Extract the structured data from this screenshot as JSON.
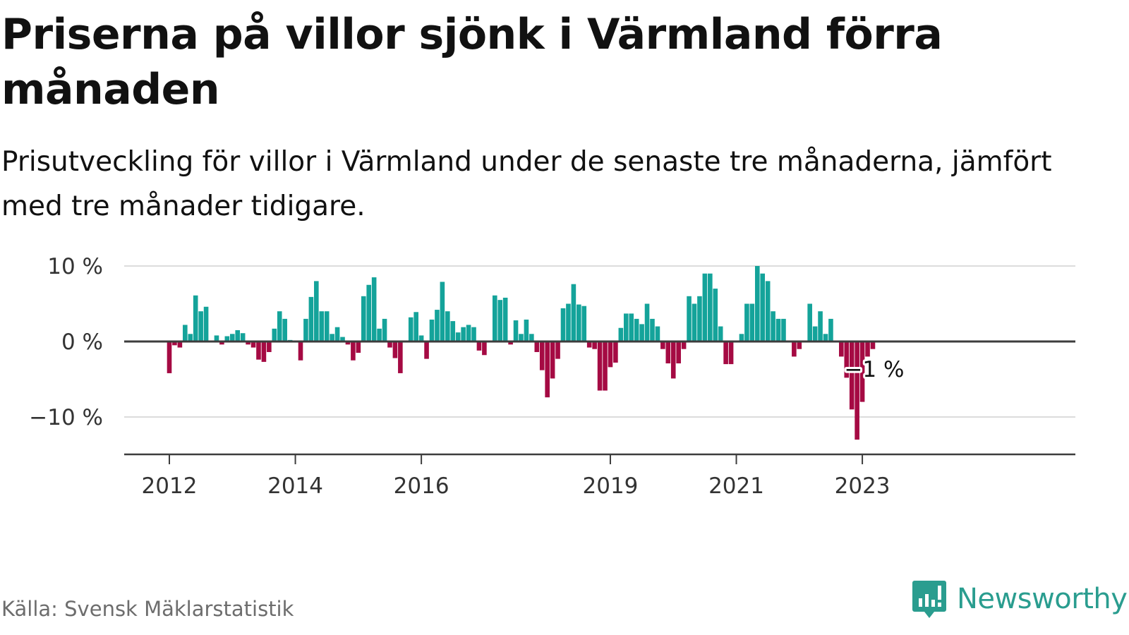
{
  "header": {
    "title": "Priserna på villor sjönk i Värmland förra månaden",
    "subtitle": "Prisutveckling för villor i Värmland under de senaste tre månaderna, jämfört med tre månader tidigare."
  },
  "footer": {
    "source": "Källa: Svensk Mäklarstatistik",
    "brand": "Newsworthy",
    "brand_icon": "bar-chart-speech-bubble-icon"
  },
  "colors": {
    "positive": "#14a39a",
    "negative": "#a50a43",
    "axis": "#3d3d3d",
    "grid": "#dcdcdc",
    "text": "#111111",
    "muted": "#6d6d6d"
  },
  "chart_data": {
    "type": "bar",
    "title": "Priserna på villor sjönk i Värmland förra månaden",
    "subtitle": "Prisutveckling för villor i Värmland under de senaste tre månaderna, jämfört med tre månader tidigare.",
    "unit": "%",
    "ylim": [
      -15,
      10
    ],
    "y_ticks": [
      {
        "value": 10,
        "label": "10 %"
      },
      {
        "value": 0,
        "label": "0 %"
      },
      {
        "value": -10,
        "label": "−10 %"
      }
    ],
    "x_ticks": [
      "2012",
      "2014",
      "2016",
      "2019",
      "2021",
      "2023"
    ],
    "grid": true,
    "annotation": {
      "text": "−1 %",
      "date": "2023-03"
    },
    "series": [
      {
        "points": [
          [
            "2012-01",
            -4.2
          ],
          [
            "2012-02",
            -0.5
          ],
          [
            "2012-03",
            -0.8
          ],
          [
            "2012-04",
            2.2
          ],
          [
            "2012-05",
            1.0
          ],
          [
            "2012-06",
            6.1
          ],
          [
            "2012-07",
            4.0
          ],
          [
            "2012-08",
            4.6
          ],
          [
            "2012-09",
            0
          ],
          [
            "2012-10",
            0.8
          ],
          [
            "2012-11",
            -0.4
          ],
          [
            "2012-12",
            0.7
          ],
          [
            "2013-01",
            1.0
          ],
          [
            "2013-02",
            1.5
          ],
          [
            "2013-03",
            1.1
          ],
          [
            "2013-04",
            -0.4
          ],
          [
            "2013-05",
            -0.8
          ],
          [
            "2013-06",
            -2.4
          ],
          [
            "2013-07",
            -2.7
          ],
          [
            "2013-08",
            -1.4
          ],
          [
            "2013-09",
            1.7
          ],
          [
            "2013-10",
            4.0
          ],
          [
            "2013-11",
            3.0
          ],
          [
            "2013-12",
            0.2
          ],
          [
            "2014-01",
            0
          ],
          [
            "2014-02",
            -2.5
          ],
          [
            "2014-03",
            3.0
          ],
          [
            "2014-04",
            5.9
          ],
          [
            "2014-05",
            8.0
          ],
          [
            "2014-06",
            4.0
          ],
          [
            "2014-07",
            4.0
          ],
          [
            "2014-08",
            1.0
          ],
          [
            "2014-09",
            1.9
          ],
          [
            "2014-10",
            0.6
          ],
          [
            "2014-11",
            -0.4
          ],
          [
            "2014-12",
            -2.5
          ],
          [
            "2015-01",
            -1.5
          ],
          [
            "2015-02",
            6.0
          ],
          [
            "2015-03",
            7.5
          ],
          [
            "2015-04",
            8.5
          ],
          [
            "2015-05",
            1.7
          ],
          [
            "2015-06",
            3.0
          ],
          [
            "2015-07",
            -0.8
          ],
          [
            "2015-08",
            -2.2
          ],
          [
            "2015-09",
            -4.2
          ],
          [
            "2015-10",
            0
          ],
          [
            "2015-11",
            3.2
          ],
          [
            "2015-12",
            3.9
          ],
          [
            "2016-01",
            0.8
          ],
          [
            "2016-02",
            -2.3
          ],
          [
            "2016-03",
            2.9
          ],
          [
            "2016-04",
            4.2
          ],
          [
            "2016-05",
            7.9
          ],
          [
            "2016-06",
            4.0
          ],
          [
            "2016-07",
            2.7
          ],
          [
            "2016-08",
            1.2
          ],
          [
            "2016-09",
            1.9
          ],
          [
            "2016-10",
            2.2
          ],
          [
            "2016-11",
            1.9
          ],
          [
            "2016-12",
            -1.2
          ],
          [
            "2017-01",
            -1.8
          ],
          [
            "2017-02",
            0
          ],
          [
            "2017-03",
            6.1
          ],
          [
            "2017-04",
            5.5
          ],
          [
            "2017-05",
            5.8
          ],
          [
            "2017-06",
            -0.4
          ],
          [
            "2017-07",
            2.8
          ],
          [
            "2017-08",
            1.0
          ],
          [
            "2017-09",
            2.9
          ],
          [
            "2017-10",
            1.0
          ],
          [
            "2017-11",
            -1.4
          ],
          [
            "2017-12",
            -3.8
          ],
          [
            "2018-01",
            -7.4
          ],
          [
            "2018-02",
            -4.9
          ],
          [
            "2018-03",
            -2.3
          ],
          [
            "2018-04",
            4.4
          ],
          [
            "2018-05",
            5.0
          ],
          [
            "2018-06",
            7.6
          ],
          [
            "2018-07",
            4.9
          ],
          [
            "2018-08",
            4.7
          ],
          [
            "2018-09",
            -0.8
          ],
          [
            "2018-10",
            -1.0
          ],
          [
            "2018-11",
            -6.5
          ],
          [
            "2018-12",
            -6.5
          ],
          [
            "2019-01",
            -3.4
          ],
          [
            "2019-02",
            -2.8
          ],
          [
            "2019-03",
            1.8
          ],
          [
            "2019-04",
            3.7
          ],
          [
            "2019-05",
            3.7
          ],
          [
            "2019-06",
            3.0
          ],
          [
            "2019-07",
            2.3
          ],
          [
            "2019-08",
            5.0
          ],
          [
            "2019-09",
            3.0
          ],
          [
            "2019-10",
            2.0
          ],
          [
            "2019-11",
            -1.0
          ],
          [
            "2019-12",
            -2.9
          ],
          [
            "2020-01",
            -4.9
          ],
          [
            "2020-02",
            -2.9
          ],
          [
            "2020-03",
            -1.0
          ],
          [
            "2020-04",
            6.0
          ],
          [
            "2020-05",
            5.0
          ],
          [
            "2020-06",
            6.0
          ],
          [
            "2020-07",
            9.0
          ],
          [
            "2020-08",
            9.0
          ],
          [
            "2020-09",
            7.0
          ],
          [
            "2020-10",
            2.0
          ],
          [
            "2020-11",
            -3.0
          ],
          [
            "2020-12",
            -3.0
          ],
          [
            "2021-01",
            0
          ],
          [
            "2021-02",
            1.0
          ],
          [
            "2021-03",
            5.0
          ],
          [
            "2021-04",
            5.0
          ],
          [
            "2021-05",
            10.0
          ],
          [
            "2021-06",
            9.0
          ],
          [
            "2021-07",
            8.0
          ],
          [
            "2021-08",
            4.0
          ],
          [
            "2021-09",
            3.0
          ],
          [
            "2021-10",
            3.0
          ],
          [
            "2021-11",
            0
          ],
          [
            "2021-12",
            -2.0
          ],
          [
            "2022-01",
            -1.0
          ],
          [
            "2022-02",
            0
          ],
          [
            "2022-03",
            5.0
          ],
          [
            "2022-04",
            2.0
          ],
          [
            "2022-05",
            4.0
          ],
          [
            "2022-06",
            1.0
          ],
          [
            "2022-07",
            3.0
          ],
          [
            "2022-08",
            0
          ],
          [
            "2022-09",
            -2.0
          ],
          [
            "2022-10",
            -4.8
          ],
          [
            "2022-11",
            -9.0
          ],
          [
            "2022-12",
            -13.0
          ],
          [
            "2023-01",
            -8.0
          ],
          [
            "2023-02",
            -2.0
          ],
          [
            "2023-03",
            -1.0
          ]
        ]
      }
    ]
  }
}
